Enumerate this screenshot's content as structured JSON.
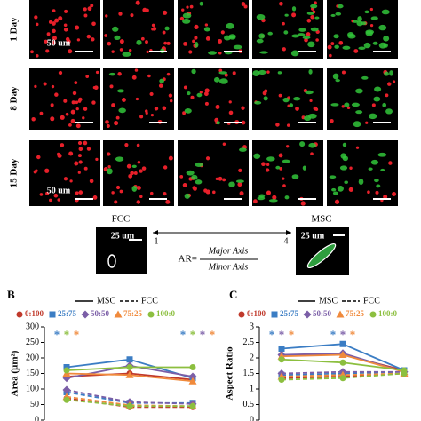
{
  "figure_a": {
    "row_labels": [
      "1 Day",
      "8 Day",
      "15 Day"
    ],
    "scale_labels": [
      "50 um",
      "50 um"
    ]
  },
  "ar_diagram": {
    "fcc_label": "FCC",
    "msc_label": "MSC",
    "scale_label_fcc": "25 um",
    "scale_label_msc": "25 um",
    "ar_min": "1",
    "ar_max": "4",
    "formula_prefix": "AR=",
    "numerator": "Major Axis",
    "denominator": "Minor Axis"
  },
  "chart_data": [
    {
      "type": "line",
      "panel_label": "B",
      "y_label": "Area (µm²)",
      "categories": [
        null,
        null,
        null
      ],
      "ylim": [
        0,
        300
      ],
      "yticks": [
        0,
        50,
        100,
        150,
        200,
        250,
        300
      ],
      "line_styles": [
        {
          "name": "MSC",
          "dash": "solid"
        },
        {
          "name": "FCC",
          "dash": "dashed"
        }
      ],
      "series": [
        {
          "name": "0:100",
          "color": "#c0392b",
          "marker": "circle",
          "values": [
            140,
            150,
            130
          ],
          "fcc_values": [
            70,
            42,
            42
          ]
        },
        {
          "name": "25:75",
          "color": "#3b7dc4",
          "marker": "square",
          "values": [
            170,
            195,
            135
          ],
          "fcc_values": [
            90,
            55,
            55
          ]
        },
        {
          "name": "50:50",
          "color": "#7b5ea7",
          "marker": "diamond",
          "values": [
            135,
            175,
            140
          ],
          "fcc_values": [
            97,
            58,
            52
          ]
        },
        {
          "name": "75:25",
          "color": "#f08a3c",
          "marker": "triangle",
          "values": [
            150,
            145,
            125
          ],
          "fcc_values": [
            75,
            48,
            45
          ]
        },
        {
          "name": "100:0",
          "color": "#8cbf3f",
          "marker": "circle",
          "values": [
            160,
            170,
            170
          ],
          "fcc_values": [
            65,
            45,
            45
          ]
        }
      ],
      "annotations": [
        {
          "text": "*",
          "color": "#3b7dc4",
          "category": 0
        },
        {
          "text": "*",
          "color": "#8cbf3f",
          "category": 0
        },
        {
          "text": "*",
          "color": "#f08a3c",
          "category": 0
        },
        {
          "text": "*",
          "color": "#3b7dc4",
          "category": 2
        },
        {
          "text": "*",
          "color": "#8cbf3f",
          "category": 2
        },
        {
          "text": "*",
          "color": "#7b5ea7",
          "category": 2
        },
        {
          "text": "*",
          "color": "#f08a3c",
          "category": 2
        }
      ]
    },
    {
      "type": "line",
      "panel_label": "C",
      "y_label": "Aspect Ratio",
      "categories": [
        null,
        null,
        null
      ],
      "ylim": [
        0,
        3
      ],
      "yticks": [
        0,
        0.5,
        1,
        1.5,
        2,
        2.5,
        3
      ],
      "line_styles": [
        {
          "name": "MSC",
          "dash": "solid"
        },
        {
          "name": "FCC",
          "dash": "dashed"
        }
      ],
      "series": [
        {
          "name": "0:100",
          "color": "#c0392b",
          "marker": "circle",
          "values": [
            2.1,
            2.1,
            1.6
          ],
          "fcc_values": [
            1.35,
            1.4,
            1.5
          ]
        },
        {
          "name": "25:75",
          "color": "#3b7dc4",
          "marker": "square",
          "values": [
            2.3,
            2.45,
            1.6
          ],
          "fcc_values": [
            1.45,
            1.5,
            1.55
          ]
        },
        {
          "name": "50:50",
          "color": "#7b5ea7",
          "marker": "diamond",
          "values": [
            2.1,
            2.15,
            1.55
          ],
          "fcc_values": [
            1.5,
            1.55,
            1.55
          ]
        },
        {
          "name": "75:25",
          "color": "#f08a3c",
          "marker": "triangle",
          "values": [
            2.05,
            2.1,
            1.55
          ],
          "fcc_values": [
            1.4,
            1.45,
            1.5
          ]
        },
        {
          "name": "100:0",
          "color": "#8cbf3f",
          "marker": "circle",
          "values": [
            1.95,
            1.85,
            1.6
          ],
          "fcc_values": [
            1.3,
            1.35,
            1.5
          ]
        }
      ],
      "annotations": [
        {
          "text": "*",
          "color": "#3b7dc4",
          "category": 0
        },
        {
          "text": "*",
          "color": "#7b5ea7",
          "category": 0
        },
        {
          "text": "*",
          "color": "#f08a3c",
          "category": 0
        },
        {
          "text": "*",
          "color": "#3b7dc4",
          "category": 1
        },
        {
          "text": "*",
          "color": "#7b5ea7",
          "category": 1
        },
        {
          "text": "*",
          "color": "#f08a3c",
          "category": 1
        }
      ]
    }
  ]
}
